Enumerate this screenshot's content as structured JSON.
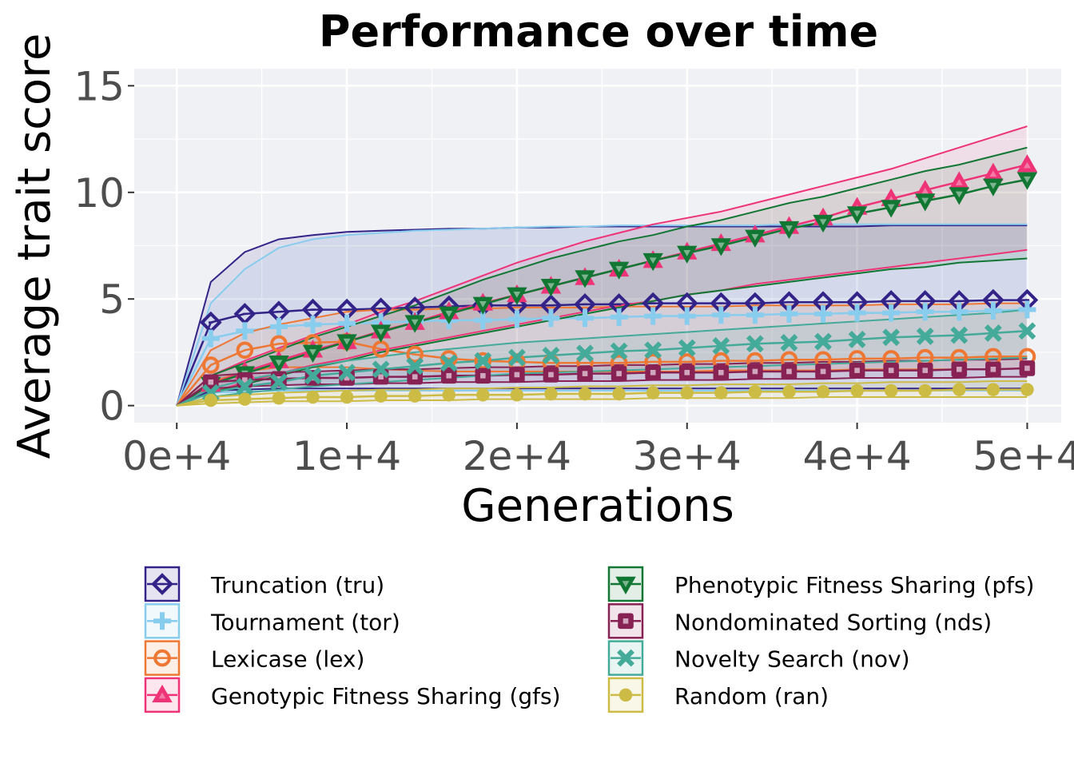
{
  "chart_data": {
    "type": "line",
    "title": "Performance over time",
    "xlabel": "Generations",
    "ylabel": "Average trait score",
    "xlim": [
      -2500,
      52000
    ],
    "ylim": [
      -0.8,
      15.8
    ],
    "x_ticks": [
      0,
      10000,
      20000,
      30000,
      40000,
      50000
    ],
    "x_tick_labels": [
      "0e+4",
      "1e+4",
      "2e+4",
      "3e+4",
      "4e+4",
      "5e+4"
    ],
    "y_ticks": [
      0,
      5,
      10,
      15
    ],
    "y_tick_labels": [
      "0",
      "5",
      "10",
      "15"
    ],
    "grid": true,
    "background": "#f0f1f5",
    "legend_position": "bottom",
    "legend_columns": 2,
    "x": [
      0,
      2000,
      4000,
      6000,
      8000,
      10000,
      12000,
      14000,
      16000,
      18000,
      20000,
      22000,
      24000,
      26000,
      28000,
      30000,
      32000,
      34000,
      36000,
      38000,
      40000,
      42000,
      44000,
      46000,
      48000,
      50000
    ],
    "series": [
      {
        "name": "Truncation (tru)",
        "marker": "diamond",
        "color": "#332288",
        "values": [
          0,
          3.9,
          4.3,
          4.4,
          4.5,
          4.5,
          4.55,
          4.6,
          4.65,
          4.7,
          4.7,
          4.7,
          4.75,
          4.75,
          4.8,
          4.8,
          4.8,
          4.8,
          4.85,
          4.85,
          4.85,
          4.9,
          4.9,
          4.9,
          4.95,
          4.95
        ],
        "lower": [
          0,
          0.7,
          0.75,
          0.8,
          0.8,
          0.8,
          0.8,
          0.8,
          0.8,
          0.8,
          0.8,
          0.8,
          0.8,
          0.8,
          0.8,
          0.8,
          0.8,
          0.8,
          0.8,
          0.8,
          0.8,
          0.8,
          0.8,
          0.8,
          0.8,
          0.8
        ],
        "upper": [
          0,
          5.8,
          7.2,
          7.8,
          8.0,
          8.15,
          8.2,
          8.25,
          8.3,
          8.3,
          8.35,
          8.35,
          8.4,
          8.4,
          8.4,
          8.4,
          8.4,
          8.4,
          8.4,
          8.4,
          8.4,
          8.45,
          8.45,
          8.45,
          8.45,
          8.45
        ]
      },
      {
        "name": "Tournament (tor)",
        "marker": "plus",
        "color": "#88ccee",
        "values": [
          0,
          3.15,
          3.5,
          3.7,
          3.8,
          3.85,
          3.9,
          3.95,
          4.0,
          4.0,
          4.05,
          4.1,
          4.1,
          4.15,
          4.2,
          4.2,
          4.25,
          4.25,
          4.3,
          4.3,
          4.35,
          4.35,
          4.4,
          4.4,
          4.45,
          4.5
        ],
        "lower": [
          0,
          0.6,
          0.65,
          0.7,
          0.7,
          0.7,
          0.7,
          0.7,
          0.7,
          0.7,
          0.7,
          0.7,
          0.7,
          0.7,
          0.7,
          0.7,
          0.7,
          0.7,
          0.7,
          0.7,
          0.7,
          0.7,
          0.7,
          0.7,
          0.7,
          0.7
        ],
        "upper": [
          0,
          4.8,
          6.4,
          7.4,
          7.8,
          8.0,
          8.1,
          8.2,
          8.25,
          8.3,
          8.35,
          8.4,
          8.4,
          8.45,
          8.45,
          8.45,
          8.45,
          8.45,
          8.5,
          8.5,
          8.5,
          8.5,
          8.5,
          8.5,
          8.5,
          8.5
        ]
      },
      {
        "name": "Lexicase (lex)",
        "marker": "circle-open",
        "color": "#ee7733",
        "values": [
          0,
          1.9,
          2.6,
          2.9,
          2.95,
          3.0,
          2.65,
          2.4,
          2.2,
          2.1,
          2.05,
          2.0,
          2.0,
          2.0,
          2.05,
          2.05,
          2.1,
          2.1,
          2.15,
          2.15,
          2.2,
          2.2,
          2.25,
          2.25,
          2.3,
          2.3
        ],
        "lower": [
          0,
          1.1,
          1.6,
          1.8,
          1.8,
          1.8,
          1.7,
          1.65,
          1.6,
          1.6,
          1.6,
          1.6,
          1.6,
          1.6,
          1.6,
          1.6,
          1.65,
          1.65,
          1.65,
          1.65,
          1.7,
          1.7,
          1.7,
          1.7,
          1.7,
          1.75
        ],
        "upper": [
          0,
          2.6,
          3.4,
          3.8,
          4.1,
          4.4,
          4.5,
          4.5,
          4.55,
          4.55,
          4.6,
          4.6,
          4.6,
          4.65,
          4.65,
          4.65,
          4.65,
          4.7,
          4.7,
          4.7,
          4.7,
          4.75,
          4.75,
          4.75,
          4.8,
          4.8
        ]
      },
      {
        "name": "Genotypic Fitness Sharing (gfs)",
        "marker": "triangle-up",
        "color": "#ee3377",
        "values": [
          0,
          1.0,
          1.6,
          2.1,
          2.6,
          3.0,
          3.5,
          3.9,
          4.4,
          4.8,
          5.2,
          5.6,
          6.0,
          6.4,
          6.8,
          7.2,
          7.6,
          8.0,
          8.4,
          8.8,
          9.3,
          9.7,
          10.1,
          10.5,
          10.9,
          11.3
        ],
        "lower": [
          0,
          0.6,
          1.1,
          1.5,
          1.9,
          2.2,
          2.6,
          2.9,
          3.2,
          3.5,
          3.8,
          4.1,
          4.4,
          4.7,
          4.9,
          5.2,
          5.4,
          5.7,
          5.9,
          6.1,
          6.3,
          6.5,
          6.7,
          6.9,
          7.1,
          7.3
        ],
        "upper": [
          0,
          1.4,
          2.1,
          2.7,
          3.3,
          3.8,
          4.4,
          4.9,
          5.5,
          6.1,
          6.7,
          7.2,
          7.7,
          8.1,
          8.5,
          8.8,
          9.1,
          9.5,
          9.9,
          10.3,
          10.7,
          11.1,
          11.6,
          12.1,
          12.6,
          13.1
        ]
      },
      {
        "name": "Phenotypic Fitness Sharing (pfs)",
        "marker": "triangle-down",
        "color": "#117733",
        "values": [
          0,
          1.0,
          1.5,
          2.0,
          2.5,
          3.0,
          3.45,
          3.9,
          4.3,
          4.75,
          5.2,
          5.6,
          6.0,
          6.4,
          6.8,
          7.15,
          7.5,
          7.9,
          8.3,
          8.6,
          9.0,
          9.3,
          9.6,
          9.9,
          10.3,
          10.6
        ],
        "lower": [
          0,
          0.6,
          1.0,
          1.4,
          1.8,
          2.1,
          2.5,
          2.8,
          3.1,
          3.4,
          3.7,
          4.0,
          4.3,
          4.6,
          4.9,
          5.2,
          5.4,
          5.6,
          5.8,
          6.0,
          6.2,
          6.4,
          6.5,
          6.7,
          6.8,
          6.9
        ],
        "upper": [
          0,
          1.4,
          2.0,
          2.6,
          3.2,
          3.7,
          4.2,
          4.7,
          5.3,
          5.9,
          6.4,
          6.9,
          7.3,
          7.7,
          8.0,
          8.4,
          8.7,
          9.1,
          9.5,
          9.8,
          10.2,
          10.6,
          11.0,
          11.3,
          11.7,
          12.1
        ]
      },
      {
        "name": "Nondominated Sorting (nds)",
        "marker": "square",
        "color": "#882255",
        "values": [
          0,
          1.1,
          1.2,
          1.25,
          1.3,
          1.3,
          1.35,
          1.35,
          1.4,
          1.4,
          1.45,
          1.45,
          1.5,
          1.5,
          1.55,
          1.55,
          1.55,
          1.6,
          1.6,
          1.6,
          1.65,
          1.65,
          1.65,
          1.7,
          1.7,
          1.75
        ],
        "lower": [
          0,
          0.8,
          0.9,
          0.95,
          1.0,
          1.0,
          1.05,
          1.05,
          1.1,
          1.1,
          1.1,
          1.15,
          1.15,
          1.15,
          1.2,
          1.2,
          1.2,
          1.25,
          1.25,
          1.25,
          1.3,
          1.3,
          1.3,
          1.3,
          1.35,
          1.35
        ],
        "upper": [
          0,
          1.4,
          1.5,
          1.55,
          1.6,
          1.65,
          1.7,
          1.7,
          1.75,
          1.8,
          1.8,
          1.85,
          1.85,
          1.9,
          1.9,
          1.95,
          1.95,
          2.0,
          2.0,
          2.05,
          2.05,
          2.1,
          2.1,
          2.15,
          2.15,
          2.2
        ]
      },
      {
        "name": "Novelty Search (nov)",
        "marker": "cross",
        "color": "#44aa99",
        "values": [
          0,
          0.6,
          0.9,
          1.1,
          1.4,
          1.55,
          1.7,
          1.85,
          2.0,
          2.1,
          2.25,
          2.35,
          2.45,
          2.55,
          2.6,
          2.7,
          2.8,
          2.9,
          2.95,
          3.0,
          3.1,
          3.2,
          3.25,
          3.3,
          3.4,
          3.5
        ],
        "lower": [
          0,
          0.4,
          0.6,
          0.75,
          0.9,
          1.0,
          1.1,
          1.2,
          1.3,
          1.4,
          1.5,
          1.55,
          1.6,
          1.65,
          1.7,
          1.75,
          1.8,
          1.85,
          1.9,
          1.95,
          2.0,
          2.05,
          2.1,
          2.15,
          2.2,
          2.25
        ],
        "upper": [
          0,
          0.8,
          1.2,
          1.5,
          1.85,
          2.1,
          2.3,
          2.5,
          2.65,
          2.8,
          2.95,
          3.05,
          3.15,
          3.25,
          3.35,
          3.45,
          3.55,
          3.65,
          3.75,
          3.85,
          3.95,
          4.05,
          4.15,
          4.25,
          4.35,
          4.5
        ]
      },
      {
        "name": "Random (ran)",
        "marker": "circle",
        "color": "#ccbb44",
        "values": [
          0,
          0.25,
          0.3,
          0.35,
          0.4,
          0.4,
          0.45,
          0.45,
          0.5,
          0.5,
          0.5,
          0.55,
          0.55,
          0.55,
          0.6,
          0.6,
          0.6,
          0.65,
          0.65,
          0.65,
          0.7,
          0.7,
          0.7,
          0.75,
          0.75,
          0.75
        ],
        "lower": [
          0,
          0.1,
          0.15,
          0.2,
          0.2,
          0.2,
          0.25,
          0.25,
          0.25,
          0.3,
          0.3,
          0.3,
          0.3,
          0.3,
          0.35,
          0.35,
          0.35,
          0.35,
          0.35,
          0.4,
          0.4,
          0.4,
          0.4,
          0.4,
          0.4,
          0.4
        ],
        "upper": [
          0,
          0.4,
          0.5,
          0.6,
          0.65,
          0.7,
          0.75,
          0.75,
          0.8,
          0.8,
          0.85,
          0.85,
          0.9,
          0.9,
          0.95,
          0.95,
          1.0,
          1.0,
          1.0,
          1.05,
          1.05,
          1.1,
          1.1,
          1.1,
          1.15,
          1.15
        ]
      }
    ]
  }
}
